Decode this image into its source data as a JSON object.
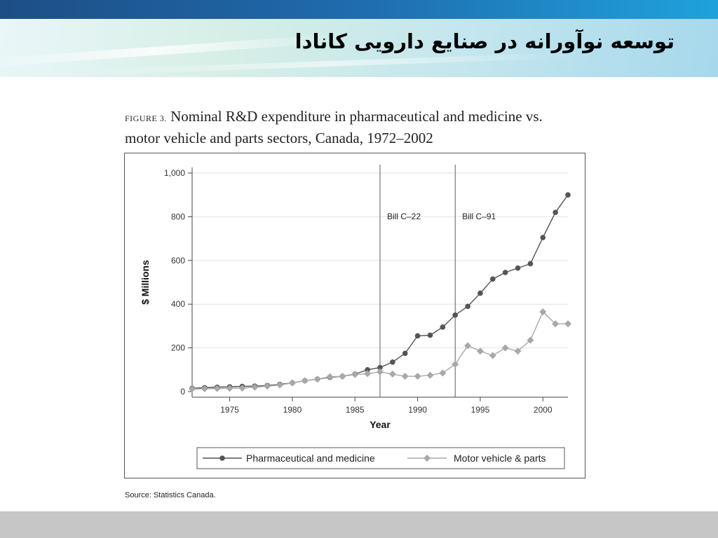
{
  "slide": {
    "title": "توسعه نوآورانه در صنایع دارویی کانادا"
  },
  "figure": {
    "label": "FIGURE 3.",
    "caption": "Nominal R&D expenditure in pharmaceutical and medicine vs. motor vehicle and parts sectors, Canada, 1972–2002",
    "source": "Source: Statistics Canada."
  },
  "colors": {
    "pharma_line": "#555555",
    "motor_line": "#a8a8a8",
    "gridline": "#e2e2e2"
  },
  "chart_data": {
    "type": "line",
    "xlabel": "Year",
    "ylabel": "$ Millions",
    "xlim": [
      1972,
      2002
    ],
    "ylim": [
      0,
      1000
    ],
    "xticks": [
      1975,
      1980,
      1985,
      1990,
      1995,
      2000
    ],
    "xtick_labels": [
      "1975",
      "1980",
      "1985",
      "1990",
      "1995",
      "2000"
    ],
    "yticks": [
      0,
      200,
      400,
      600,
      800,
      1000
    ],
    "ytick_labels": [
      "0",
      "200",
      "400",
      "600",
      "800",
      "1,000"
    ],
    "grid": true,
    "legend_position": "bottom",
    "x": [
      1972,
      1973,
      1974,
      1975,
      1976,
      1977,
      1978,
      1979,
      1980,
      1981,
      1982,
      1983,
      1984,
      1985,
      1986,
      1987,
      1988,
      1989,
      1990,
      1991,
      1992,
      1993,
      1994,
      1995,
      1996,
      1997,
      1998,
      1999,
      2000,
      2001,
      2002
    ],
    "series": [
      {
        "name": "Pharmaceutical and medicine",
        "marker": "circle",
        "values": [
          15,
          18,
          20,
          22,
          24,
          25,
          28,
          33,
          40,
          50,
          57,
          65,
          70,
          80,
          100,
          110,
          135,
          175,
          255,
          258,
          295,
          350,
          390,
          450,
          515,
          545,
          565,
          585,
          705,
          820,
          900
        ]
      },
      {
        "name": "Motor vehicle & parts",
        "marker": "diamond",
        "values": [
          12,
          13,
          14,
          15,
          16,
          20,
          25,
          30,
          40,
          50,
          57,
          68,
          70,
          78,
          82,
          90,
          80,
          70,
          70,
          75,
          85,
          125,
          210,
          185,
          165,
          200,
          185,
          235,
          365,
          310,
          310
        ]
      }
    ],
    "annotations": [
      {
        "x": 1987,
        "label": "Bill C–22"
      },
      {
        "x": 1993,
        "label": "Bill C–91"
      }
    ]
  }
}
